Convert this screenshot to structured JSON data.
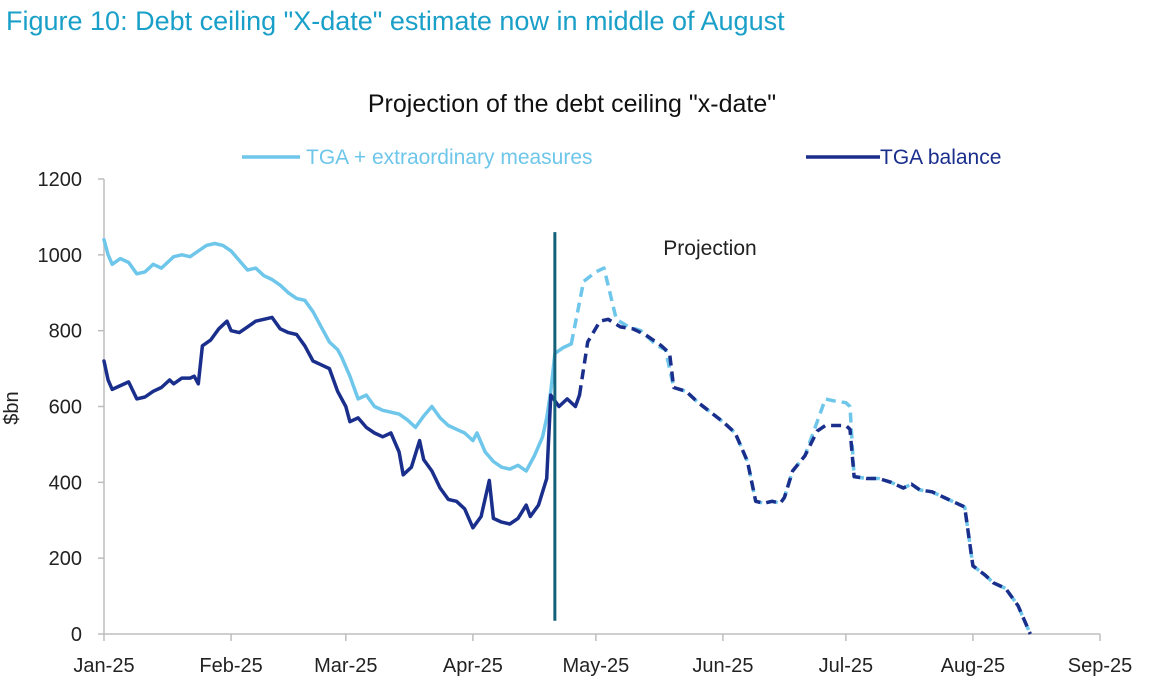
{
  "figure_title": "Figure 10: Debt ceiling \"X-date\" estimate now in middle of August",
  "chart_data": {
    "type": "line",
    "title": "Projection of the debt ceiling \"x-date\"",
    "ylabel": "$bn",
    "xlabel": "",
    "ylim": [
      0,
      1200
    ],
    "yticks": [
      0,
      200,
      400,
      600,
      800,
      1000,
      1200
    ],
    "xlim_days": [
      0,
      243
    ],
    "xticks": [
      {
        "label": "Jan-25",
        "day": 0
      },
      {
        "label": "Feb-25",
        "day": 31
      },
      {
        "label": "Mar-25",
        "day": 59
      },
      {
        "label": "Apr-25",
        "day": 90
      },
      {
        "label": "May-25",
        "day": 120
      },
      {
        "label": "Jun-25",
        "day": 151
      },
      {
        "label": "Jul-25",
        "day": 181
      },
      {
        "label": "Aug-25",
        "day": 212
      },
      {
        "label": "Sep-25",
        "day": 243
      }
    ],
    "projection_start_day": 110,
    "annotation": "Projection",
    "colors": {
      "light": "#6ec6ea",
      "dark": "#1a2f8c",
      "divider": "#12607a",
      "axis": "#bdbdbd"
    },
    "series": [
      {
        "name": "TGA + extraordinary measures",
        "color_key": "light",
        "actual": [
          [
            0,
            1040
          ],
          [
            1,
            1000
          ],
          [
            2,
            975
          ],
          [
            4,
            990
          ],
          [
            6,
            980
          ],
          [
            8,
            950
          ],
          [
            10,
            955
          ],
          [
            12,
            975
          ],
          [
            14,
            965
          ],
          [
            16,
            985
          ],
          [
            17,
            995
          ],
          [
            19,
            1000
          ],
          [
            21,
            995
          ],
          [
            23,
            1010
          ],
          [
            25,
            1025
          ],
          [
            27,
            1030
          ],
          [
            29,
            1025
          ],
          [
            31,
            1010
          ],
          [
            33,
            985
          ],
          [
            35,
            960
          ],
          [
            37,
            965
          ],
          [
            39,
            945
          ],
          [
            41,
            935
          ],
          [
            43,
            920
          ],
          [
            45,
            900
          ],
          [
            47,
            885
          ],
          [
            49,
            880
          ],
          [
            51,
            850
          ],
          [
            53,
            810
          ],
          [
            55,
            770
          ],
          [
            57,
            750
          ],
          [
            58,
            730
          ],
          [
            60,
            680
          ],
          [
            62,
            620
          ],
          [
            64,
            630
          ],
          [
            66,
            600
          ],
          [
            68,
            590
          ],
          [
            70,
            585
          ],
          [
            72,
            580
          ],
          [
            74,
            565
          ],
          [
            76,
            545
          ],
          [
            78,
            575
          ],
          [
            80,
            600
          ],
          [
            82,
            570
          ],
          [
            84,
            550
          ],
          [
            86,
            540
          ],
          [
            88,
            530
          ],
          [
            90,
            510
          ],
          [
            91,
            530
          ],
          [
            93,
            480
          ],
          [
            95,
            455
          ],
          [
            97,
            440
          ],
          [
            99,
            435
          ],
          [
            101,
            445
          ],
          [
            103,
            430
          ],
          [
            105,
            470
          ],
          [
            107,
            520
          ],
          [
            108,
            570
          ],
          [
            109,
            640
          ],
          [
            110,
            740
          ],
          [
            112,
            755
          ],
          [
            114,
            765
          ]
        ],
        "projection": [
          [
            114,
            765
          ],
          [
            117,
            930
          ],
          [
            120,
            955
          ],
          [
            122,
            965
          ],
          [
            125,
            830
          ],
          [
            128,
            810
          ],
          [
            131,
            800
          ],
          [
            133,
            780
          ],
          [
            135,
            760
          ],
          [
            137,
            750
          ],
          [
            139,
            650
          ],
          [
            142,
            640
          ],
          [
            145,
            610
          ],
          [
            148,
            585
          ],
          [
            151,
            560
          ],
          [
            154,
            530
          ],
          [
            157,
            455
          ],
          [
            159,
            350
          ],
          [
            161,
            345
          ],
          [
            163,
            350
          ],
          [
            165,
            345
          ],
          [
            166,
            360
          ],
          [
            168,
            430
          ],
          [
            171,
            470
          ],
          [
            174,
            560
          ],
          [
            176,
            620
          ],
          [
            178,
            615
          ],
          [
            181,
            610
          ],
          [
            182,
            600
          ],
          [
            183,
            415
          ],
          [
            186,
            410
          ],
          [
            189,
            410
          ],
          [
            192,
            400
          ],
          [
            195,
            385
          ],
          [
            197,
            395
          ],
          [
            199,
            380
          ],
          [
            202,
            375
          ],
          [
            205,
            360
          ],
          [
            208,
            345
          ],
          [
            210,
            335
          ],
          [
            212,
            180
          ],
          [
            215,
            155
          ],
          [
            217,
            135
          ],
          [
            220,
            120
          ],
          [
            223,
            75
          ],
          [
            226,
            0
          ]
        ]
      },
      {
        "name": "TGA balance",
        "color_key": "dark",
        "actual": [
          [
            0,
            720
          ],
          [
            1,
            670
          ],
          [
            2,
            645
          ],
          [
            4,
            655
          ],
          [
            6,
            665
          ],
          [
            8,
            620
          ],
          [
            10,
            625
          ],
          [
            12,
            640
          ],
          [
            14,
            650
          ],
          [
            16,
            670
          ],
          [
            17,
            660
          ],
          [
            19,
            675
          ],
          [
            21,
            675
          ],
          [
            22,
            680
          ],
          [
            23,
            660
          ],
          [
            24,
            760
          ],
          [
            26,
            775
          ],
          [
            28,
            805
          ],
          [
            30,
            825
          ],
          [
            31,
            800
          ],
          [
            33,
            795
          ],
          [
            35,
            810
          ],
          [
            37,
            825
          ],
          [
            39,
            830
          ],
          [
            41,
            835
          ],
          [
            43,
            805
          ],
          [
            45,
            795
          ],
          [
            47,
            790
          ],
          [
            49,
            760
          ],
          [
            51,
            720
          ],
          [
            53,
            710
          ],
          [
            55,
            700
          ],
          [
            57,
            640
          ],
          [
            59,
            600
          ],
          [
            60,
            560
          ],
          [
            62,
            570
          ],
          [
            64,
            545
          ],
          [
            66,
            530
          ],
          [
            68,
            520
          ],
          [
            70,
            530
          ],
          [
            72,
            480
          ],
          [
            73,
            420
          ],
          [
            75,
            440
          ],
          [
            77,
            510
          ],
          [
            78,
            460
          ],
          [
            80,
            430
          ],
          [
            82,
            385
          ],
          [
            84,
            355
          ],
          [
            86,
            350
          ],
          [
            88,
            330
          ],
          [
            90,
            280
          ],
          [
            92,
            310
          ],
          [
            94,
            405
          ],
          [
            95,
            305
          ],
          [
            97,
            295
          ],
          [
            99,
            290
          ],
          [
            101,
            305
          ],
          [
            103,
            340
          ],
          [
            104,
            310
          ],
          [
            106,
            340
          ],
          [
            108,
            410
          ],
          [
            109,
            630
          ],
          [
            111,
            600
          ],
          [
            113,
            620
          ],
          [
            115,
            600
          ],
          [
            116,
            630
          ]
        ],
        "projection": [
          [
            116,
            630
          ],
          [
            118,
            770
          ],
          [
            121,
            825
          ],
          [
            123,
            830
          ],
          [
            126,
            810
          ],
          [
            129,
            805
          ],
          [
            132,
            790
          ],
          [
            134,
            775
          ],
          [
            136,
            760
          ],
          [
            138,
            740
          ],
          [
            139,
            650
          ],
          [
            142,
            640
          ],
          [
            145,
            610
          ],
          [
            148,
            585
          ],
          [
            151,
            560
          ],
          [
            154,
            530
          ],
          [
            157,
            455
          ],
          [
            159,
            350
          ],
          [
            161,
            345
          ],
          [
            163,
            350
          ],
          [
            165,
            345
          ],
          [
            166,
            360
          ],
          [
            168,
            430
          ],
          [
            171,
            470
          ],
          [
            174,
            535
          ],
          [
            176,
            550
          ],
          [
            178,
            550
          ],
          [
            181,
            550
          ],
          [
            182,
            540
          ],
          [
            183,
            415
          ],
          [
            186,
            410
          ],
          [
            189,
            410
          ],
          [
            192,
            400
          ],
          [
            195,
            385
          ],
          [
            197,
            395
          ],
          [
            199,
            380
          ],
          [
            202,
            375
          ],
          [
            205,
            360
          ],
          [
            208,
            345
          ],
          [
            210,
            335
          ],
          [
            212,
            180
          ],
          [
            215,
            155
          ],
          [
            217,
            135
          ],
          [
            220,
            120
          ],
          [
            223,
            75
          ],
          [
            226,
            0
          ]
        ]
      }
    ]
  }
}
